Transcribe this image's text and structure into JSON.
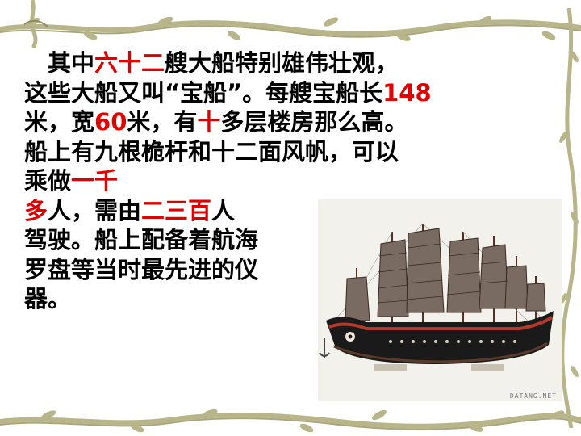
{
  "slide": {
    "lines": [
      [
        {
          "t": "　其中",
          "c": ""
        },
        {
          "t": "六十二",
          "c": "red"
        },
        {
          "t": "艘大船特别雄伟壮观，",
          "c": ""
        }
      ],
      [
        {
          "t": "这些大船又叫“宝船”。每艘宝船长",
          "c": ""
        },
        {
          "t": "148",
          "c": "red"
        }
      ],
      [
        {
          "t": "米，宽",
          "c": ""
        },
        {
          "t": "60",
          "c": "red"
        },
        {
          "t": "米，有",
          "c": ""
        },
        {
          "t": "十",
          "c": "red"
        },
        {
          "t": "多层楼房那么高。",
          "c": ""
        }
      ],
      [
        {
          "t": "船上有九根桅杆和十二面风帆，可以",
          "c": ""
        }
      ],
      [
        {
          "t": "乘做",
          "c": ""
        },
        {
          "t": "一千",
          "c": "red"
        }
      ],
      [
        {
          "t": "多",
          "c": "red"
        },
        {
          "t": "人，需由",
          "c": ""
        },
        {
          "t": "二三百",
          "c": "red"
        },
        {
          "t": "人",
          "c": ""
        }
      ],
      [
        {
          "t": "驾驶。船上配备着航海",
          "c": ""
        }
      ],
      [
        {
          "t": "罗盘等当时最先进的仪",
          "c": ""
        }
      ],
      [
        {
          "t": "器。",
          "c": ""
        }
      ]
    ]
  },
  "photo": {
    "watermark": "DATANG.NET"
  },
  "colors": {
    "highlight": "#e00000",
    "vine": "#b8b58a",
    "vine_dark": "#8f8c5f",
    "hull": "#1a1a1a",
    "hull_trim": "#b33a2a"
  }
}
